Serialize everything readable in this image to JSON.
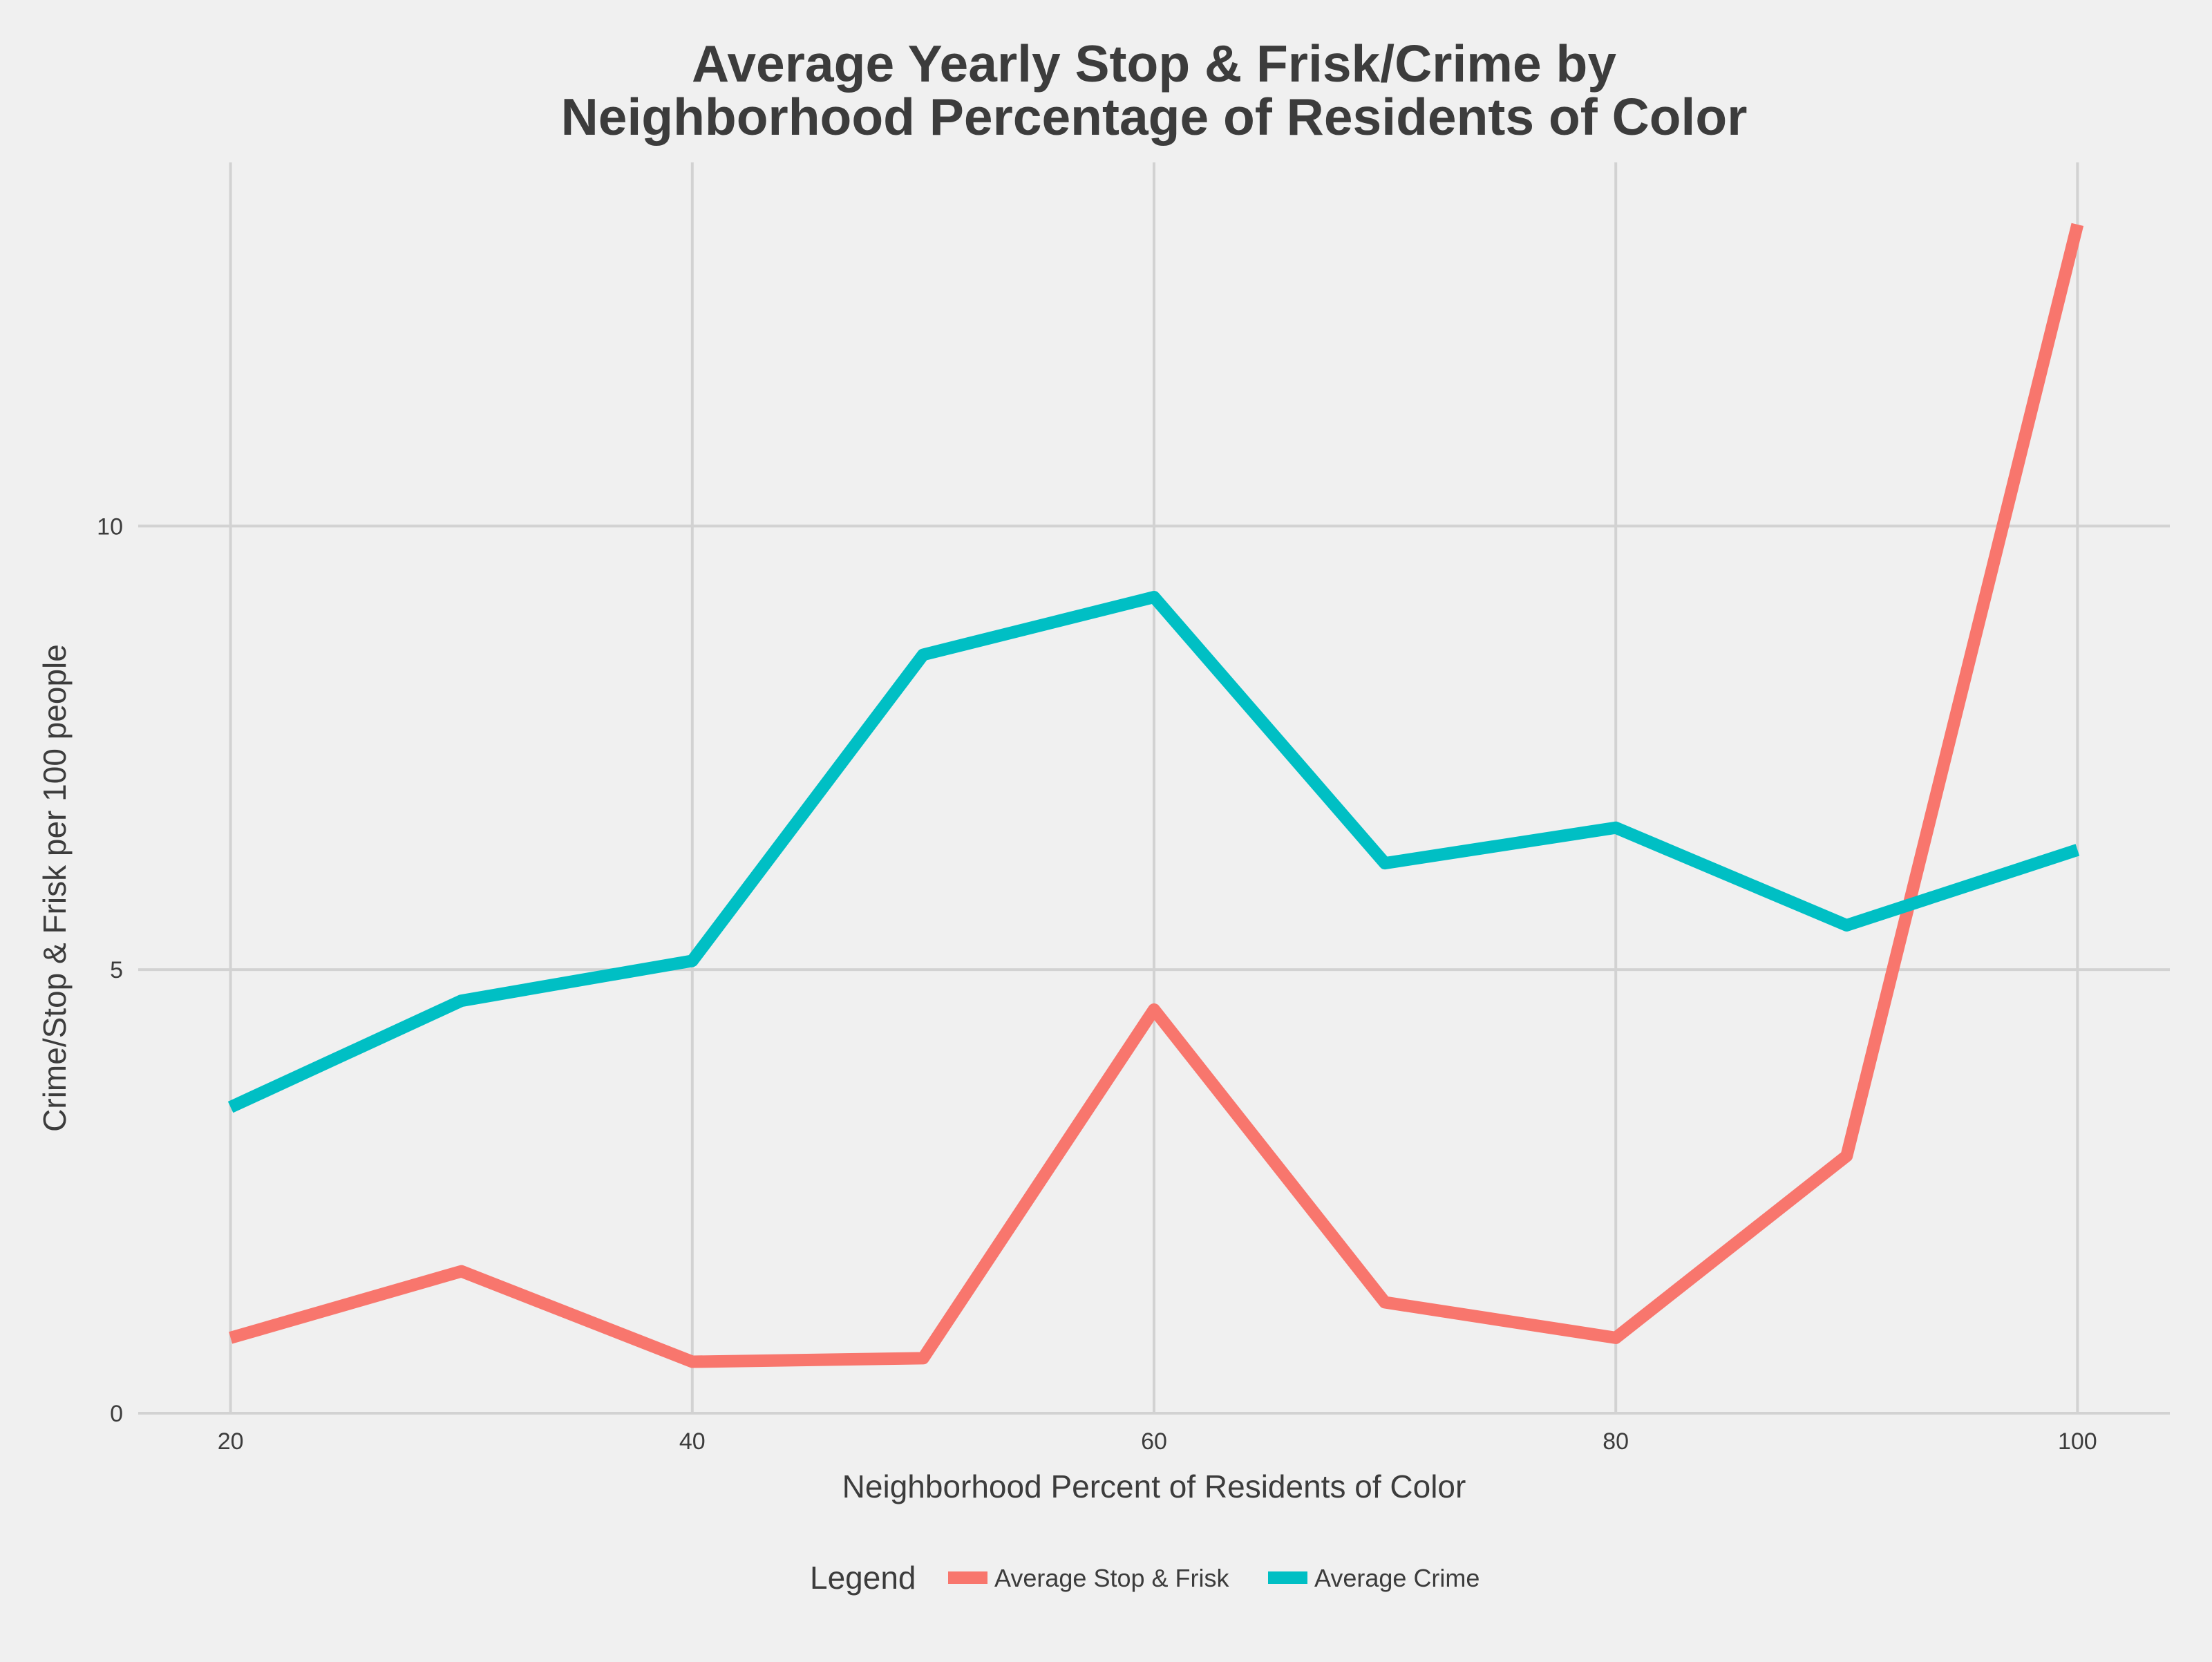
{
  "chart_data": {
    "type": "line",
    "title_lines": [
      "Average Yearly Stop & Frisk/Crime by",
      "Neighborhood Percentage of Residents of Color"
    ],
    "xlabel": "Neighborhood Percent of Residents of Color",
    "ylabel": "Crime/Stop & Frisk per 100 people",
    "xlim": [
      16,
      104
    ],
    "ylim": [
      0,
      14.1
    ],
    "x_ticks": [
      20,
      40,
      60,
      80,
      100
    ],
    "y_ticks": [
      0,
      5,
      10
    ],
    "grid": true,
    "legend": {
      "title": "Legend",
      "position": "bottom"
    },
    "x": [
      20,
      30,
      40,
      50,
      60,
      70,
      80,
      90,
      100
    ],
    "series": [
      {
        "name": "Average Stop & Frisk",
        "color": "#f8766d",
        "values": [
          0.85,
          1.6,
          0.58,
          0.62,
          4.55,
          1.25,
          0.85,
          2.9,
          13.4
        ]
      },
      {
        "name": "Average Crime",
        "color": "#00bfc4",
        "values": [
          3.45,
          4.65,
          5.1,
          8.55,
          9.2,
          6.2,
          6.6,
          5.5,
          6.35
        ]
      }
    ]
  }
}
